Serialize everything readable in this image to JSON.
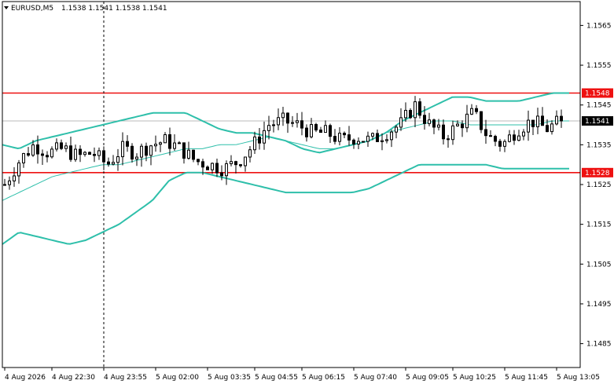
{
  "chart_data": {
    "type": "candlestick",
    "symbol": "EURUSD,M5",
    "ohlc_header": "1.1538 1.1541 1.1538 1.1541",
    "y_axis": {
      "range": [
        1.1479,
        1.1571
      ],
      "ticks": [
        "1.1565",
        "1.1555",
        "1.1545",
        "1.1535",
        "1.1525",
        "1.1515",
        "1.1505",
        "1.1495",
        "1.1485"
      ],
      "tick_values": [
        1.1565,
        1.1555,
        1.1545,
        1.1535,
        1.1525,
        1.1515,
        1.1505,
        1.1495,
        1.1485
      ]
    },
    "x_axis": {
      "tick_labels": [
        "4 Aug 2026",
        "4 Aug 22:30",
        "4 Aug 23:55",
        "5 Aug 02:00",
        "5 Aug 03:35",
        "5 Aug 04:55",
        "5 Aug 06:15",
        "5 Aug 07:40",
        "5 Aug 09:05",
        "5 Aug 10:25",
        "5 Aug 11:45",
        "5 Aug 13:05"
      ],
      "tick_positions": [
        0,
        10,
        21,
        32,
        43,
        53,
        63,
        74,
        85,
        95,
        106,
        117
      ]
    },
    "price_badges": [
      {
        "label": "1.1548",
        "value": 1.1548,
        "style": "red"
      },
      {
        "label": "1.1541",
        "value": 1.1541,
        "style": "black"
      },
      {
        "label": "1.1528",
        "value": 1.1528,
        "style": "red"
      }
    ],
    "horizontal_levels": [
      {
        "value": 1.1548,
        "color": "#ee1111"
      },
      {
        "value": 1.1528,
        "color": "#ee1111"
      }
    ],
    "current_price": 1.1541,
    "period_separator_index": 21,
    "grid": false,
    "colors": {
      "bands": "#2ebfaa",
      "moving_average": "#2ebfaa",
      "candle": "#000000",
      "levels": "#ee1111",
      "current_line": "#b8b8b8"
    },
    "bollinger_upper": [
      1.1535,
      1.1534,
      1.1536,
      1.1537,
      1.1538,
      1.1539,
      1.154,
      1.1541,
      1.1542,
      1.1543,
      1.1543,
      1.1543,
      1.1541,
      1.1539,
      1.1538,
      1.1538,
      1.1537,
      1.1536,
      1.1534,
      1.1533,
      1.1534,
      1.1535,
      1.1536,
      1.1538,
      1.1541,
      1.1543,
      1.1545,
      1.1547,
      1.1547,
      1.1546,
      1.1546,
      1.1546,
      1.1547,
      1.1548,
      1.1548
    ],
    "moving_average": [
      1.1521,
      1.1523,
      1.1525,
      1.1527,
      1.1528,
      1.1529,
      1.153,
      1.153,
      1.1531,
      1.1532,
      1.1533,
      1.1534,
      1.1534,
      1.1535,
      1.1535,
      1.1536,
      1.1537,
      1.1536,
      1.1535,
      1.1534,
      1.1534,
      1.1535,
      1.1536,
      1.1538,
      1.1539,
      1.154,
      1.1541,
      1.1541,
      1.154,
      1.154,
      1.154,
      1.154,
      1.154,
      1.1541,
      1.1541
    ],
    "bollinger_lower": [
      1.151,
      1.1513,
      1.1512,
      1.1511,
      1.151,
      1.1511,
      1.1513,
      1.1515,
      1.1518,
      1.1521,
      1.1526,
      1.1528,
      1.1528,
      1.1527,
      1.1526,
      1.1525,
      1.1524,
      1.1523,
      1.1523,
      1.1523,
      1.1523,
      1.1523,
      1.1524,
      1.1526,
      1.1528,
      1.153,
      1.153,
      1.153,
      1.153,
      1.153,
      1.1529,
      1.1529,
      1.1529,
      1.1529,
      1.1529
    ],
    "close_path": [
      1.1525,
      1.1531,
      1.1535,
      1.1533,
      1.1534,
      1.1532,
      1.1533,
      1.153,
      1.1534,
      1.1533,
      1.1535,
      1.1536,
      1.1534,
      1.1531,
      1.153,
      1.1529,
      1.1531,
      1.1535,
      1.154,
      1.1541,
      1.154,
      1.1538,
      1.1538,
      1.1536,
      1.1537,
      1.1536,
      1.1538,
      1.154,
      1.1545,
      1.154,
      1.1537,
      1.154,
      1.1543,
      1.1537,
      1.1535,
      1.1539,
      1.1541,
      1.1539,
      1.1541
    ]
  }
}
